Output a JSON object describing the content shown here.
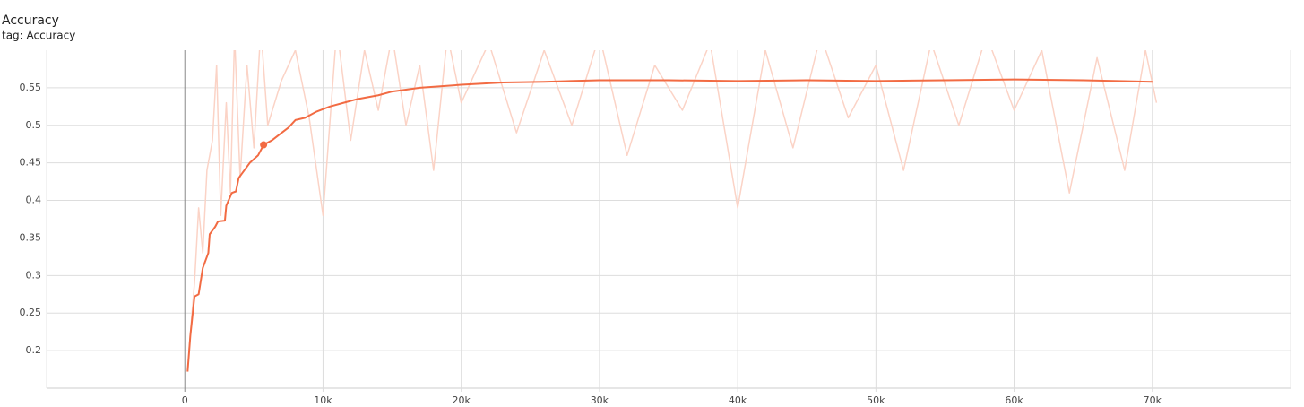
{
  "chart_data": {
    "type": "line",
    "title": "Accuracy",
    "subtitle": "tag: Accuracy",
    "xlim": [
      -10000,
      80000
    ],
    "ylim": [
      0.15,
      0.6
    ],
    "xticks": [
      0,
      {
        "value": 10000,
        "label": "10k"
      },
      {
        "value": 20000,
        "label": "20k"
      },
      {
        "value": 30000,
        "label": "30k"
      },
      {
        "value": 40000,
        "label": "40k"
      },
      {
        "value": 50000,
        "label": "50k"
      },
      {
        "value": 60000,
        "label": "60k"
      },
      {
        "value": 70000,
        "label": "70k"
      }
    ],
    "yticks": [
      0.2,
      0.25,
      0.3,
      0.35,
      0.4,
      0.45,
      0.5,
      0.55
    ],
    "grid": true,
    "series": [
      {
        "color": "#fbd3c6",
        "x": [
          300,
          700,
          1000,
          1300,
          1600,
          2000,
          2300,
          2600,
          3000,
          3300,
          3600,
          4000,
          4500,
          5000,
          5500,
          6000,
          7000,
          8000,
          9000,
          10000,
          11000,
          12000,
          13000,
          14000,
          15000,
          16000,
          17000,
          18000,
          19000,
          20000,
          22000,
          24000,
          26000,
          28000,
          30000,
          32000,
          34000,
          36000,
          38000,
          40000,
          42000,
          44000,
          46000,
          48000,
          50000,
          52000,
          54000,
          56000,
          58000,
          60000,
          62000,
          64000,
          66000,
          68000,
          69500,
          70300
        ],
        "values": [
          0.2,
          0.29,
          0.39,
          0.33,
          0.44,
          0.48,
          0.58,
          0.38,
          0.53,
          0.41,
          0.62,
          0.43,
          0.58,
          0.47,
          0.63,
          0.5,
          0.56,
          0.6,
          0.51,
          0.38,
          0.63,
          0.48,
          0.6,
          0.52,
          0.62,
          0.5,
          0.58,
          0.44,
          0.62,
          0.53,
          0.61,
          0.49,
          0.6,
          0.5,
          0.62,
          0.46,
          0.58,
          0.52,
          0.61,
          0.39,
          0.6,
          0.47,
          0.62,
          0.51,
          0.58,
          0.44,
          0.61,
          0.5,
          0.62,
          0.52,
          0.6,
          0.41,
          0.59,
          0.44,
          0.6,
          0.53
        ]
      },
      {
        "color": "#f26b43",
        "x": [
          200,
          400,
          700,
          1000,
          1300,
          1700,
          1800,
          2200,
          2400,
          2900,
          3000,
          3400,
          3700,
          3900,
          4300,
          4700,
          5300,
          5700,
          6300,
          7000,
          7500,
          8000,
          8700,
          9500,
          10500,
          11500,
          12500,
          14000,
          15000,
          17000,
          20000,
          23000,
          26000,
          30000,
          35000,
          40000,
          45000,
          50000,
          55000,
          60000,
          65000,
          70000
        ],
        "values": [
          0.172,
          0.22,
          0.272,
          0.275,
          0.31,
          0.33,
          0.355,
          0.365,
          0.372,
          0.373,
          0.393,
          0.41,
          0.412,
          0.43,
          0.44,
          0.45,
          0.46,
          0.474,
          0.48,
          0.49,
          0.497,
          0.507,
          0.51,
          0.518,
          0.525,
          0.53,
          0.535,
          0.54,
          0.545,
          0.55,
          0.554,
          0.557,
          0.558,
          0.56,
          0.56,
          0.559,
          0.56,
          0.559,
          0.56,
          0.561,
          0.56,
          0.558
        ]
      }
    ],
    "highlight": {
      "x": 5700,
      "y": 0.474
    }
  }
}
